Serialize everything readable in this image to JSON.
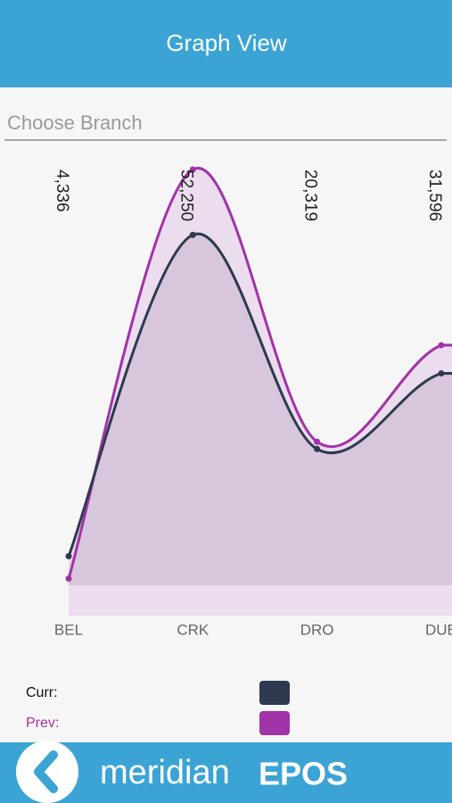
{
  "header": {
    "title": "Graph View"
  },
  "branch_input": {
    "placeholder": "Choose Branch"
  },
  "chart_data": {
    "type": "area",
    "categories": [
      "BEL",
      "CRK",
      "DRO",
      "DUB"
    ],
    "series": [
      {
        "name": "Curr:",
        "color": "#2d3a4f",
        "values": [
          4336,
          52250,
          20319,
          31596
        ],
        "value_labels": [
          "4,336",
          "52,250",
          "20,319",
          "31,596"
        ]
      },
      {
        "name": "Prev:",
        "color": "#a232a8",
        "values": [
          1000,
          62000,
          21400,
          35800
        ]
      }
    ]
  },
  "footer": {
    "brand_light": "meridian",
    "brand_bold": "EPOS"
  }
}
